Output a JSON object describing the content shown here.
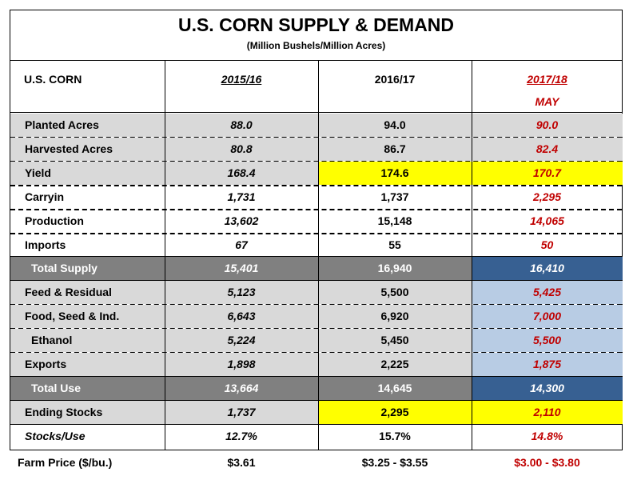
{
  "title": "U.S. CORN SUPPLY & DEMAND",
  "subtitle": "(Million Bushels/Million Acres)",
  "header": {
    "label": "U.S. CORN",
    "col1": "2015/16",
    "col2": "2016/17",
    "col3": "2017/18",
    "col3_sub": "MAY"
  },
  "colors": {
    "gray": "#d9d9d9",
    "dark_gray": "#808080",
    "yellow": "#ffff00",
    "dark_blue": "#376092",
    "light_blue": "#b8cce4",
    "red_text": "#c00000"
  },
  "rows": [
    {
      "label": "Planted Acres",
      "v1": "88.0",
      "v2": "94.0",
      "v3": "90.0"
    },
    {
      "label": "Harvested Acres",
      "v1": "80.8",
      "v2": "86.7",
      "v3": "82.4"
    },
    {
      "label": "Yield",
      "v1": "168.4",
      "v2": "174.6",
      "v3": "170.7"
    },
    {
      "label": "Carryin",
      "v1": "1,731",
      "v2": "1,737",
      "v3": "2,295"
    },
    {
      "label": "Production",
      "v1": "13,602",
      "v2": "15,148",
      "v3": "14,065"
    },
    {
      "label": "Imports",
      "v1": "67",
      "v2": "55",
      "v3": "50"
    },
    {
      "label": "Total Supply",
      "v1": "15,401",
      "v2": "16,940",
      "v3": "16,410"
    },
    {
      "label": "Feed & Residual",
      "v1": "5,123",
      "v2": "5,500",
      "v3": "5,425"
    },
    {
      "label": "Food, Seed & Ind.",
      "v1": "6,643",
      "v2": "6,920",
      "v3": "7,000"
    },
    {
      "label": "Ethanol",
      "v1": "5,224",
      "v2": "5,450",
      "v3": "5,500"
    },
    {
      "label": "Exports",
      "v1": "1,898",
      "v2": "2,225",
      "v3": "1,875"
    },
    {
      "label": "Total Use",
      "v1": "13,664",
      "v2": "14,645",
      "v3": "14,300"
    },
    {
      "label": "Ending Stocks",
      "v1": "1,737",
      "v2": "2,295",
      "v3": "2,110"
    },
    {
      "label": "Stocks/Use",
      "v1": "12.7%",
      "v2": "15.7%",
      "v3": "14.8%"
    }
  ],
  "farm_price": {
    "label": "Farm Price ($/bu.)",
    "v1": "$3.61",
    "v2": "$3.25 - $3.55",
    "v3": "$3.00 - $3.80"
  }
}
